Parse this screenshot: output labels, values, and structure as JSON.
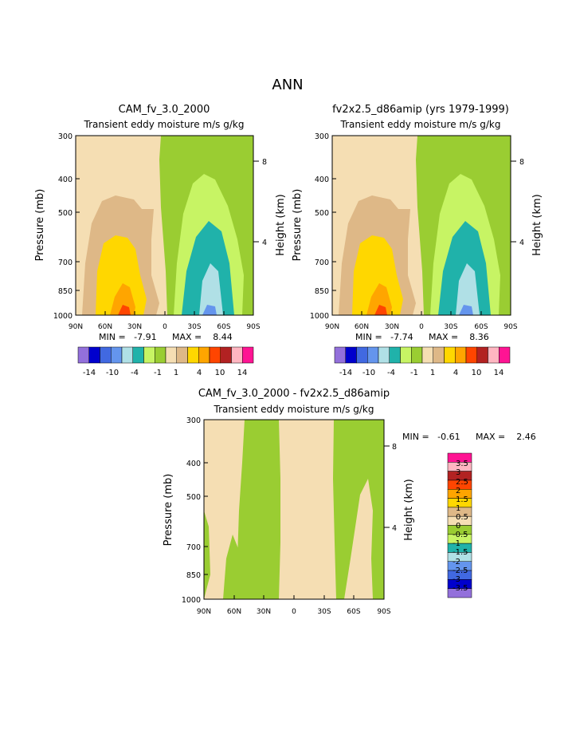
{
  "page_title": "ANN",
  "palette": {
    "tan_bg": "#f5deb3",
    "tan_dark": "#deb887",
    "yellow": "#ffd700",
    "amber": "#ffa500",
    "orange": "#ff4500",
    "red": "#b22222",
    "green": "#9acd32",
    "light_green": "#c7f464",
    "teal": "#20b2aa",
    "light_blue": "#b0e0e6",
    "mid_blue": "#6495ed"
  },
  "chart_data": [
    {
      "type": "contour",
      "title": "CAM_fv_3.0_2000",
      "subtitle": "Transient eddy moisture m/s g/kg",
      "ylabel": "Pressure (mb)",
      "ylabel_right": "Height (km)",
      "yticks": [
        "300",
        "400",
        "500",
        "700",
        "850",
        "1000"
      ],
      "yticks_right": [
        "8",
        "4"
      ],
      "xticks": [
        "90N",
        "60N",
        "30N",
        "0",
        "30S",
        "60S",
        "90S"
      ],
      "min_text": "MIN =   -7.91",
      "max_text": "MAX =    8.44",
      "colorbar_ticks": [
        "-14",
        "-10",
        "-4",
        "-1",
        "1",
        "4",
        "10",
        "14"
      ],
      "colorbar_colors": [
        "#9370db",
        "#0000cd",
        "#4169e1",
        "#6495ed",
        "#b0e0e6",
        "#20b2aa",
        "#c7f464",
        "#9acd32",
        "#f5deb3",
        "#deb887",
        "#ffd700",
        "#ffa500",
        "#ff4500",
        "#b22222",
        "#ffb6c1",
        "#ff1493"
      ]
    },
    {
      "type": "contour",
      "title": "fv2x2.5_d86amip (yrs 1979-1999)",
      "subtitle": "Transient eddy moisture m/s g/kg",
      "ylabel": "Pressure (mb)",
      "ylabel_right": "Height (km)",
      "yticks": [
        "300",
        "400",
        "500",
        "700",
        "850",
        "1000"
      ],
      "yticks_right": [
        "8",
        "4"
      ],
      "xticks": [
        "90N",
        "60N",
        "30N",
        "0",
        "30S",
        "60S",
        "90S"
      ],
      "min_text": "MIN =   -7.74",
      "max_text": "MAX =    8.36",
      "colorbar_ticks": [
        "-14",
        "-10",
        "-4",
        "-1",
        "1",
        "4",
        "10",
        "14"
      ],
      "colorbar_colors": [
        "#9370db",
        "#0000cd",
        "#4169e1",
        "#6495ed",
        "#b0e0e6",
        "#20b2aa",
        "#c7f464",
        "#9acd32",
        "#f5deb3",
        "#deb887",
        "#ffd700",
        "#ffa500",
        "#ff4500",
        "#b22222",
        "#ffb6c1",
        "#ff1493"
      ]
    },
    {
      "type": "contour",
      "title": "CAM_fv_3.0_2000 - fv2x2.5_d86amip",
      "subtitle": "Transient eddy moisture m/s g/kg",
      "ylabel": "Pressure (mb)",
      "ylabel_right": "Height (km)",
      "yticks": [
        "300",
        "400",
        "500",
        "700",
        "850",
        "1000"
      ],
      "yticks_right": [
        "8",
        "4"
      ],
      "xticks": [
        "90N",
        "60N",
        "30N",
        "0",
        "30S",
        "60S",
        "90S"
      ],
      "min_text": "MIN =   -0.61",
      "max_text": "MAX =    2.46",
      "legend_labels": [
        "3.5",
        "3",
        "2.5",
        "2",
        "1.5",
        "1",
        "0.5",
        "0",
        "-0.5",
        "-1",
        "-1.5",
        "-2",
        "-2.5",
        "-3",
        "-3.5"
      ],
      "legend_colors": [
        "#ff1493",
        "#ffb6c1",
        "#b22222",
        "#ff4500",
        "#ffa500",
        "#ffd700",
        "#deb887",
        "#f5deb3",
        "#9acd32",
        "#c7f464",
        "#20b2aa",
        "#b0e0e6",
        "#6495ed",
        "#4169e1",
        "#0000cd",
        "#9370db"
      ]
    }
  ]
}
